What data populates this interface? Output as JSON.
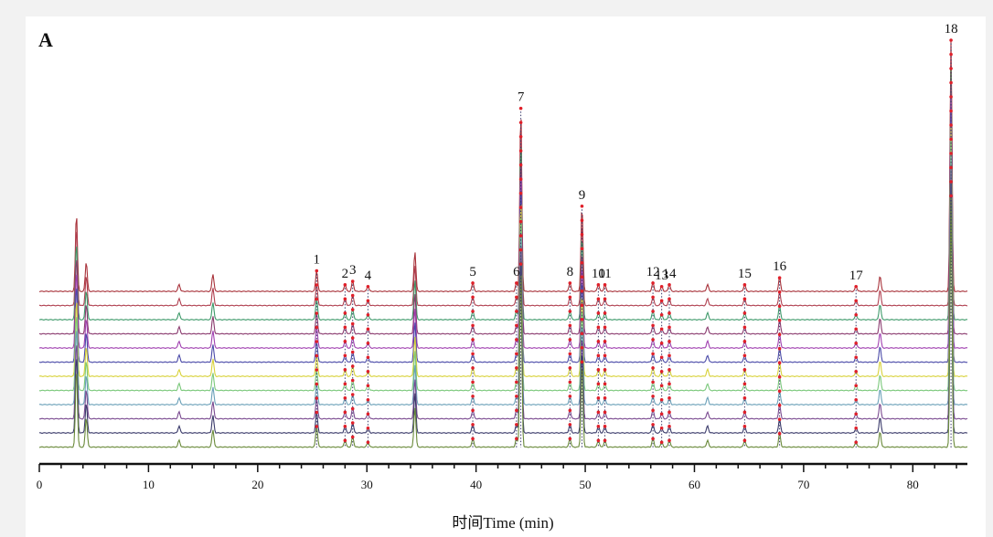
{
  "chart_data": {
    "type": "line",
    "panel_label": "A",
    "xlabel": "时间Time (min)",
    "ylabel": "",
    "xlim": [
      0,
      85
    ],
    "x_ticks": [
      0,
      10,
      20,
      30,
      40,
      50,
      60,
      70,
      80
    ],
    "n_traces": 12,
    "series_colors": [
      "#a8323a",
      "#b04050",
      "#3e9a6a",
      "#8a3a6e",
      "#a040b0",
      "#4a4aa8",
      "#d8d23a",
      "#7ac87a",
      "#6aa0b8",
      "#7a4a90",
      "#3a3a6a",
      "#6a8a3a",
      "#8a2020"
    ],
    "unlabeled_peaks": [
      {
        "t": 3.4,
        "h": 0.45
      },
      {
        "t": 4.3,
        "h": 0.17
      },
      {
        "t": 12.8,
        "h": 0.04
      },
      {
        "t": 15.9,
        "h": 0.1
      },
      {
        "t": 34.4,
        "h": 0.23
      },
      {
        "t": 61.2,
        "h": 0.04
      },
      {
        "t": 77.0,
        "h": 0.09
      }
    ],
    "labeled_peaks": [
      {
        "label": "1",
        "t": 25.4,
        "h": 0.12
      },
      {
        "label": "2",
        "t": 28.0,
        "h": 0.04
      },
      {
        "label": "3",
        "t": 28.7,
        "h": 0.06
      },
      {
        "label": "4",
        "t": 30.1,
        "h": 0.03
      },
      {
        "label": "5",
        "t": 39.7,
        "h": 0.05
      },
      {
        "label": "6",
        "t": 43.7,
        "h": 0.05
      },
      {
        "label": "7",
        "t": 44.1,
        "h": 1.05
      },
      {
        "label": "8",
        "t": 48.6,
        "h": 0.05
      },
      {
        "label": "9",
        "t": 49.7,
        "h": 0.49
      },
      {
        "label": "10",
        "t": 51.2,
        "h": 0.04
      },
      {
        "label": "11",
        "t": 51.8,
        "h": 0.04
      },
      {
        "label": "12",
        "t": 56.2,
        "h": 0.05
      },
      {
        "label": "13",
        "t": 57.0,
        "h": 0.03
      },
      {
        "label": "14",
        "t": 57.7,
        "h": 0.04
      },
      {
        "label": "15",
        "t": 64.6,
        "h": 0.04
      },
      {
        "label": "16",
        "t": 67.8,
        "h": 0.08
      },
      {
        "label": "17",
        "t": 74.8,
        "h": 0.03
      },
      {
        "label": "18",
        "t": 83.5,
        "h": 1.44
      }
    ]
  }
}
